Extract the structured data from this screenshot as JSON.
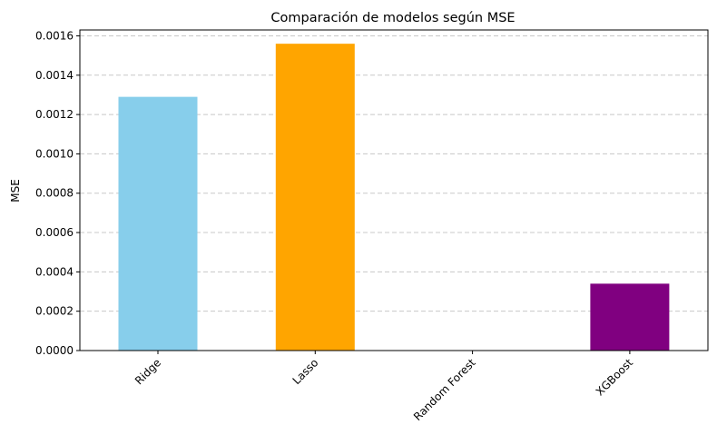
{
  "chart_data": {
    "type": "bar",
    "title": "Comparación de modelos según MSE",
    "xlabel": "",
    "ylabel": "MSE",
    "categories": [
      "Ridge",
      "Lasso",
      "Random Forest",
      "XGBoost"
    ],
    "values": [
      0.00129,
      0.00156,
      0.0,
      0.00034
    ],
    "colors": [
      "#87ceeb",
      "#ffa500",
      "#ff0000",
      "#800080"
    ],
    "ylim": [
      0,
      0.00163
    ],
    "yticks": [
      "0.0000",
      "0.0002",
      "0.0004",
      "0.0006",
      "0.0008",
      "0.0010",
      "0.0012",
      "0.0014",
      "0.0016"
    ],
    "grid": "y-dashed",
    "legend": "none"
  }
}
